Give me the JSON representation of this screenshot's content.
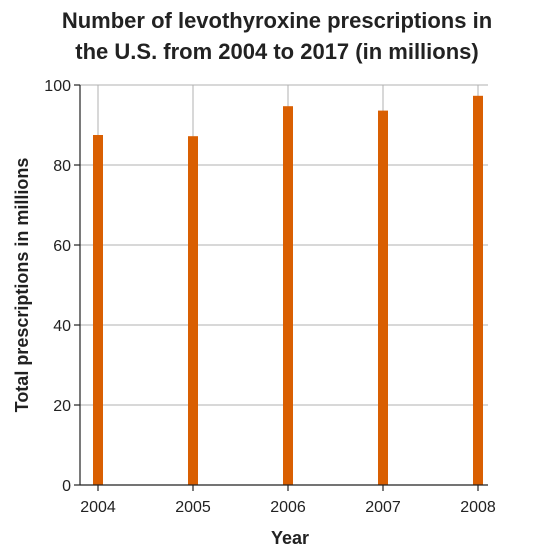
{
  "chart_data": {
    "type": "bar",
    "title": "Number of levothyroxine prescriptions in the U.S. from 2004 to 2017 (in millions)",
    "title_lines": [
      "Number of levothyroxine prescriptions in",
      "the U.S. from 2004 to 2017 (in millions)"
    ],
    "xlabel": "Year",
    "ylabel": "Total prescriptions in millions",
    "categories": [
      "2004",
      "2005",
      "2006",
      "2007",
      "2008"
    ],
    "values": [
      87.5,
      87.2,
      94.7,
      93.6,
      97.3
    ],
    "ylim": [
      0,
      100
    ],
    "yticks": [
      "0",
      "20",
      "40",
      "60",
      "80",
      "100"
    ],
    "bar_color": "#d95f02",
    "grid": true,
    "legend": "none"
  }
}
